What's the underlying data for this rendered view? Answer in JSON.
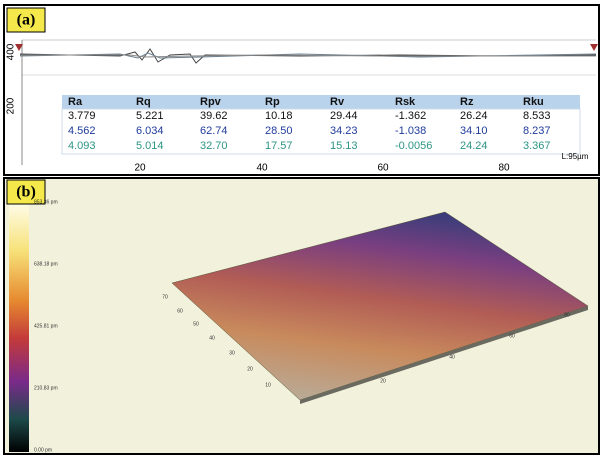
{
  "panels": [
    {
      "label": "(a)",
      "y_labels": [
        "400",
        "200"
      ],
      "x_labels": [
        "20",
        "40",
        "60",
        "80"
      ],
      "length_label": "L:95µm",
      "table": {
        "header": [
          "Ra",
          "Rq",
          "Rpv",
          "Rp",
          "Rv",
          "Rsk",
          "Rz",
          "Rku"
        ],
        "rows": [
          [
            "3.779",
            "5.221",
            "39.62",
            "10.18",
            "29.44",
            "-1.362",
            "26.24",
            "8.533"
          ],
          [
            "4.562",
            "6.034",
            "62.74",
            "28.50",
            "34.23",
            "-1.038",
            "34.10",
            "8.237"
          ],
          [
            "4.093",
            "5.014",
            "32.70",
            "17.57",
            "15.13",
            "-0.0056",
            "24.24",
            "3.367"
          ]
        ]
      }
    },
    {
      "label": "(b)",
      "colorbar_labels": [
        "853.36 pm",
        "638.18 pm",
        "425.81 pm",
        "210.83 pm",
        "0.00 pm"
      ],
      "y_axis_labels": [
        "70",
        "60",
        "50",
        "40",
        "30",
        "20",
        "10"
      ],
      "x_axis_labels": [
        "20",
        "40",
        "60",
        "80"
      ]
    }
  ]
}
